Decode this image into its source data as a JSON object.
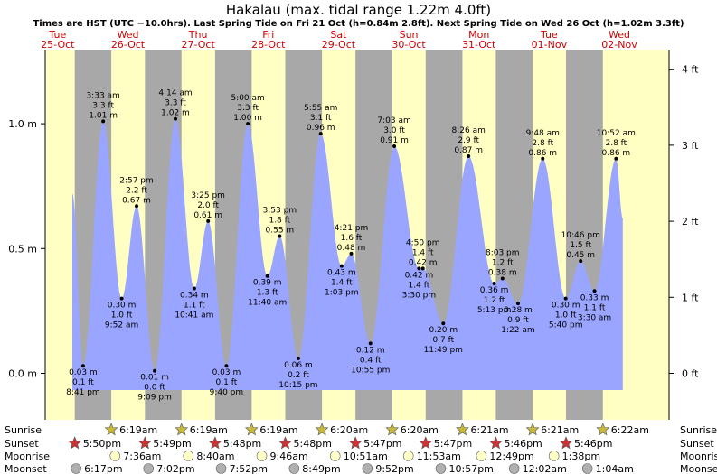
{
  "title": "Hakalau (max. tidal range 1.22m 4.0ft)",
  "subtitle": "Times are HST (UTC −10.0hrs). Last Spring Tide on Fri 21 Oct (h=0.84m 2.8ft). Next Spring Tide on Wed 26 Oct (h=1.02m 3.3ft)",
  "row_labels": {
    "sunrise": "Sunrise",
    "sunset": "Sunset",
    "moonrise": "Moonrise",
    "moonset": "Moonset"
  },
  "colors": {
    "day": "#ffffc4",
    "night": "#a8a8a8",
    "water": "#9aa5ff",
    "day_label": "#cc0000",
    "sunrise_star": "#c8b83c",
    "sunset_star": "#cc3333",
    "moonrise": "#ffffc8",
    "moonset": "#b0b0b0"
  },
  "chart_data": {
    "type": "area",
    "ylabel_left_unit": "m",
    "ylabel_right_unit": "ft",
    "ylim_m": [
      -0.2,
      1.25
    ],
    "yticks_m": [
      {
        "value": 0.0,
        "label": "0.0 m"
      },
      {
        "value": 0.5,
        "label": "0.5 m"
      },
      {
        "value": 1.0,
        "label": "1.0 m"
      }
    ],
    "yticks_ft": [
      {
        "value": 0,
        "label": "0 ft"
      },
      {
        "value": 1,
        "label": "1 ft"
      },
      {
        "value": 2,
        "label": "2 ft"
      },
      {
        "value": 3,
        "label": "3 ft"
      },
      {
        "value": 4,
        "label": "4 ft"
      }
    ],
    "days": [
      {
        "dow": "Tue",
        "date": "25-Oct"
      },
      {
        "dow": "Wed",
        "date": "26-Oct"
      },
      {
        "dow": "Thu",
        "date": "27-Oct"
      },
      {
        "dow": "Fri",
        "date": "28-Oct"
      },
      {
        "dow": "Sat",
        "date": "29-Oct"
      },
      {
        "dow": "Sun",
        "date": "30-Oct"
      },
      {
        "dow": "Mon",
        "date": "31-Oct"
      },
      {
        "dow": "Tue",
        "date": "01-Nov"
      },
      {
        "dow": "Wed",
        "date": "02-Nov"
      }
    ],
    "tides": [
      {
        "day": 0,
        "time": "20:41",
        "h": 0.03,
        "type": "low",
        "labels": [
          "0.03 m",
          "0.1 ft",
          "8:41 pm"
        ]
      },
      {
        "day": 1,
        "time": "03:33",
        "h": 1.01,
        "type": "high",
        "labels": [
          "3:33 am",
          "3.3 ft",
          "1.01 m"
        ]
      },
      {
        "day": 1,
        "time": "09:52",
        "h": 0.3,
        "type": "low",
        "labels": [
          "0.30 m",
          "1.0 ft",
          "9:52 am"
        ]
      },
      {
        "day": 1,
        "time": "14:57",
        "h": 0.67,
        "type": "high",
        "labels": [
          "2:57 pm",
          "2.2 ft",
          "0.67 m"
        ]
      },
      {
        "day": 1,
        "time": "21:09",
        "h": 0.01,
        "type": "low",
        "labels": [
          "0.01 m",
          "0.0 ft",
          "9:09 pm"
        ]
      },
      {
        "day": 2,
        "time": "04:14",
        "h": 1.02,
        "type": "high",
        "labels": [
          "4:14 am",
          "3.3 ft",
          "1.02 m"
        ]
      },
      {
        "day": 2,
        "time": "10:41",
        "h": 0.34,
        "type": "low",
        "labels": [
          "0.34 m",
          "1.1 ft",
          "10:41 am"
        ]
      },
      {
        "day": 2,
        "time": "15:25",
        "h": 0.61,
        "type": "high",
        "labels": [
          "3:25 pm",
          "2.0 ft",
          "0.61 m"
        ]
      },
      {
        "day": 2,
        "time": "21:40",
        "h": 0.03,
        "type": "low",
        "labels": [
          "0.03 m",
          "0.1 ft",
          "9:40 pm"
        ]
      },
      {
        "day": 3,
        "time": "05:00",
        "h": 1.0,
        "type": "high",
        "labels": [
          "5:00 am",
          "3.3 ft",
          "1.00 m"
        ]
      },
      {
        "day": 3,
        "time": "11:40",
        "h": 0.39,
        "type": "low",
        "labels": [
          "0.39 m",
          "1.3 ft",
          "11:40 am"
        ]
      },
      {
        "day": 3,
        "time": "15:53",
        "h": 0.55,
        "type": "high",
        "labels": [
          "3:53 pm",
          "1.8 ft",
          "0.55 m"
        ]
      },
      {
        "day": 3,
        "time": "22:15",
        "h": 0.06,
        "type": "low",
        "labels": [
          "0.06 m",
          "0.2 ft",
          "10:15 pm"
        ]
      },
      {
        "day": 4,
        "time": "05:55",
        "h": 0.96,
        "type": "high",
        "labels": [
          "5:55 am",
          "3.1 ft",
          "0.96 m"
        ]
      },
      {
        "day": 4,
        "time": "13:03",
        "h": 0.43,
        "type": "low",
        "labels": [
          "0.43 m",
          "1.4 ft",
          "1:03 pm"
        ]
      },
      {
        "day": 4,
        "time": "16:21",
        "h": 0.48,
        "type": "high",
        "labels": [
          "4:21 pm",
          "1.6 ft",
          "0.48 m"
        ]
      },
      {
        "day": 4,
        "time": "22:55",
        "h": 0.12,
        "type": "low",
        "labels": [
          "0.12 m",
          "0.4 ft",
          "10:55 pm"
        ]
      },
      {
        "day": 5,
        "time": "07:03",
        "h": 0.91,
        "type": "high",
        "labels": [
          "7:03 am",
          "3.0 ft",
          "0.91 m"
        ]
      },
      {
        "day": 5,
        "time": "15:30",
        "h": 0.42,
        "type": "low",
        "labels": [
          "0.42 m",
          "1.4 ft",
          "3:30 pm"
        ]
      },
      {
        "day": 5,
        "time": "16:50",
        "h": 0.42,
        "type": "high",
        "labels": [
          "4:50 pm",
          "1.4 ft",
          "0.42 m"
        ]
      },
      {
        "day": 5,
        "time": "23:49",
        "h": 0.2,
        "type": "low",
        "labels": [
          "0.20 m",
          "0.7 ft",
          "11:49 pm"
        ]
      },
      {
        "day": 6,
        "time": "08:26",
        "h": 0.87,
        "type": "high",
        "labels": [
          "8:26 am",
          "2.9 ft",
          "0.87 m"
        ]
      },
      {
        "day": 6,
        "time": "17:13",
        "h": 0.36,
        "type": "low",
        "labels": [
          "0.36 m",
          "1.2 ft",
          "5:13 pm"
        ]
      },
      {
        "day": 6,
        "time": "20:03",
        "h": 0.38,
        "type": "high",
        "labels": [
          "8:03 pm",
          "1.2 ft",
          "0.38 m"
        ]
      },
      {
        "day": 7,
        "time": "01:22",
        "h": 0.28,
        "type": "low",
        "labels": [
          "0.28 m",
          "0.9 ft",
          "1:22 am"
        ]
      },
      {
        "day": 7,
        "time": "09:48",
        "h": 0.86,
        "type": "high",
        "labels": [
          "9:48 am",
          "2.8 ft",
          "0.86 m"
        ]
      },
      {
        "day": 7,
        "time": "17:40",
        "h": 0.3,
        "type": "low",
        "labels": [
          "0.30 m",
          "1.0 ft",
          "5:40 pm"
        ]
      },
      {
        "day": 7,
        "time": "22:46",
        "h": 0.45,
        "type": "high",
        "labels": [
          "10:46 pm",
          "1.5 ft",
          "0.45 m"
        ]
      },
      {
        "day": 8,
        "time": "03:30",
        "h": 0.33,
        "type": "low",
        "labels": [
          "0.33 m",
          "1.1 ft",
          "3:30 am"
        ]
      },
      {
        "day": 8,
        "time": "10:52",
        "h": 0.86,
        "type": "high",
        "labels": [
          "10:52 am",
          "2.8 ft",
          "0.86 m"
        ]
      }
    ],
    "curve_start": {
      "day": 0,
      "time": "17:00",
      "h": 0.72
    },
    "curve_end": {
      "day": 8,
      "time": "13:10",
      "h": 0.62
    },
    "sunrise": [
      {
        "day": 1,
        "time": "06:19",
        "label": "6:19am"
      },
      {
        "day": 2,
        "time": "06:19",
        "label": "6:19am"
      },
      {
        "day": 3,
        "time": "06:19",
        "label": "6:19am"
      },
      {
        "day": 4,
        "time": "06:20",
        "label": "6:20am"
      },
      {
        "day": 5,
        "time": "06:20",
        "label": "6:20am"
      },
      {
        "day": 6,
        "time": "06:21",
        "label": "6:21am"
      },
      {
        "day": 7,
        "time": "06:21",
        "label": "6:21am"
      },
      {
        "day": 8,
        "time": "06:22",
        "label": "6:22am"
      }
    ],
    "sunset": [
      {
        "day": 0,
        "time": "17:50",
        "label": "5:50pm"
      },
      {
        "day": 1,
        "time": "17:49",
        "label": "5:49pm"
      },
      {
        "day": 2,
        "time": "17:48",
        "label": "5:48pm"
      },
      {
        "day": 3,
        "time": "17:48",
        "label": "5:48pm"
      },
      {
        "day": 4,
        "time": "17:47",
        "label": "5:47pm"
      },
      {
        "day": 5,
        "time": "17:47",
        "label": "5:47pm"
      },
      {
        "day": 6,
        "time": "17:46",
        "label": "5:46pm"
      },
      {
        "day": 7,
        "time": "17:46",
        "label": "5:46pm"
      }
    ],
    "moonrise": [
      {
        "day": 1,
        "time": "07:36",
        "label": "7:36am"
      },
      {
        "day": 2,
        "time": "08:40",
        "label": "8:40am"
      },
      {
        "day": 3,
        "time": "09:46",
        "label": "9:46am"
      },
      {
        "day": 4,
        "time": "10:51",
        "label": "10:51am"
      },
      {
        "day": 5,
        "time": "11:53",
        "label": "11:53am"
      },
      {
        "day": 6,
        "time": "12:49",
        "label": "12:49pm"
      },
      {
        "day": 7,
        "time": "13:38",
        "label": "1:38pm"
      }
    ],
    "moonset": [
      {
        "day": 0,
        "time": "18:17",
        "label": "6:17pm"
      },
      {
        "day": 1,
        "time": "19:02",
        "label": "7:02pm"
      },
      {
        "day": 2,
        "time": "19:52",
        "label": "7:52pm"
      },
      {
        "day": 3,
        "time": "20:49",
        "label": "8:49pm"
      },
      {
        "day": 4,
        "time": "21:52",
        "label": "9:52pm"
      },
      {
        "day": 5,
        "time": "22:57",
        "label": "10:57pm"
      },
      {
        "day": 7,
        "time": "00:02",
        "label": "12:02am"
      },
      {
        "day": 8,
        "time": "01:04",
        "label": "1:04am"
      }
    ]
  }
}
